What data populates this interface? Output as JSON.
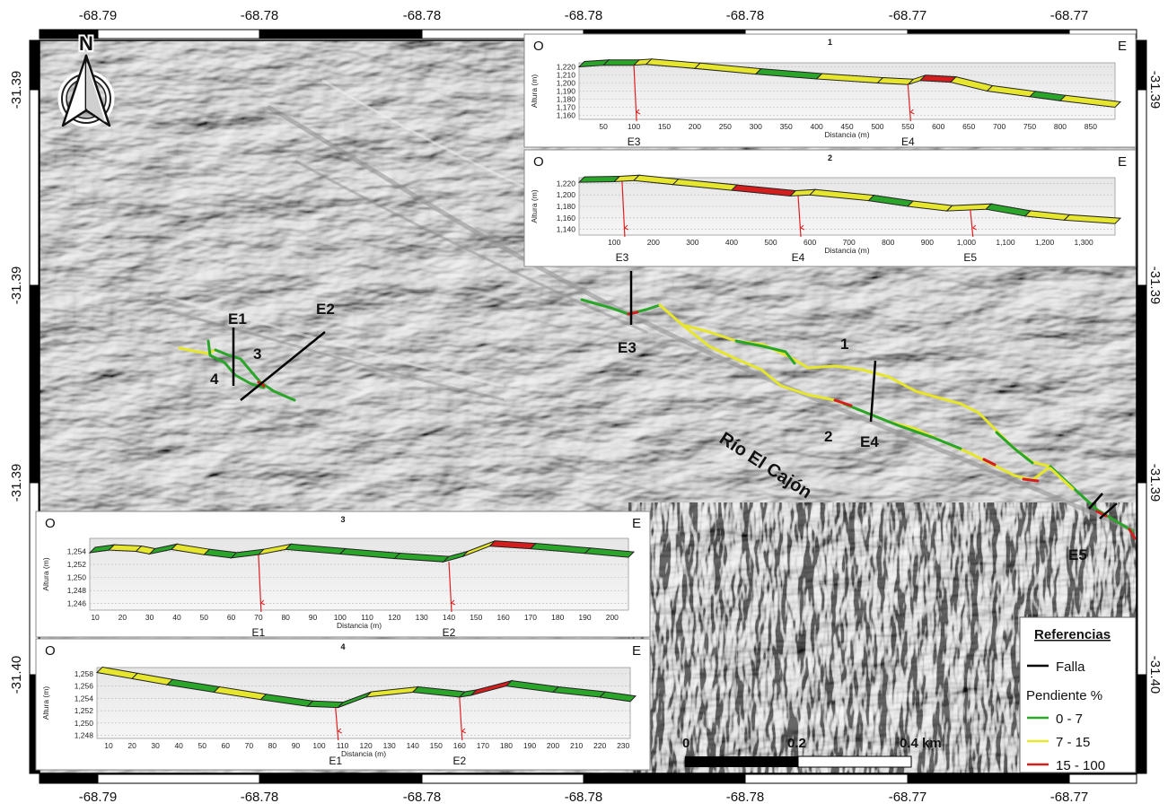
{
  "map": {
    "top_lon_labels": [
      "-68.79",
      "-68.78",
      "-68.78",
      "-68.78",
      "-68.78",
      "-68.77",
      "-68.77"
    ],
    "bottom_lon_labels": [
      "-68.79",
      "-68.78",
      "-68.78",
      "-68.78",
      "-68.78",
      "-68.77",
      "-68.77"
    ],
    "left_lat_labels": [
      "-31.39",
      "-31.39",
      "-31.39",
      "-31.40"
    ],
    "right_lat_labels": [
      "-31.39",
      "-31.39",
      "-31.39",
      "-31.40"
    ],
    "north_label": "N",
    "river_label": "Río El Cajón",
    "fault_labels": [
      "E1",
      "E2",
      "E3",
      "E4",
      "E5"
    ],
    "profile_labels": [
      "1",
      "2",
      "3",
      "4"
    ],
    "scale_labels": [
      "0",
      "0.2",
      "0.4 km"
    ],
    "colors": {
      "low": "#2aa52a",
      "mid": "#e6e62e",
      "high": "#d41e1e",
      "fault": "#000000",
      "marker": "#e02020"
    }
  },
  "legend": {
    "title": "Referencias",
    "fault_label": "Falla",
    "slope_title": "Pendiente %",
    "classes": [
      {
        "label": "0 - 7",
        "color": "#2aa52a"
      },
      {
        "label": "7 - 15",
        "color": "#e6e62e"
      },
      {
        "label": "15 - 100",
        "color": "#d41e1e"
      }
    ]
  },
  "profiles": [
    {
      "id": "p1",
      "title": "1",
      "west": "O",
      "east": "E",
      "xlabel": "Distancia (m)",
      "ylabel": "Altura (m)",
      "xmin": 10,
      "xmax": 890,
      "x_ticks": [
        50,
        100,
        150,
        200,
        250,
        300,
        350,
        400,
        450,
        500,
        550,
        600,
        650,
        700,
        750,
        800,
        850
      ],
      "ymin": 1155,
      "ymax": 1225,
      "y_ticks": [
        1160,
        1170,
        1180,
        1190,
        1200,
        1210,
        1220
      ],
      "y_tick_labels": [
        "1,160",
        "1,170",
        "1,180",
        "1,190",
        "1,200",
        "1,210",
        "1,220"
      ],
      "elevation": [
        [
          10,
          1220
        ],
        [
          50,
          1222
        ],
        [
          100,
          1222
        ],
        [
          120,
          1223
        ],
        [
          200,
          1218
        ],
        [
          300,
          1211
        ],
        [
          400,
          1205
        ],
        [
          500,
          1200
        ],
        [
          550,
          1198
        ],
        [
          570,
          1203
        ],
        [
          620,
          1201
        ],
        [
          680,
          1190
        ],
        [
          750,
          1183
        ],
        [
          800,
          1178
        ],
        [
          890,
          1170
        ]
      ],
      "segment_classes": [
        "low",
        "low",
        "mid",
        "mid",
        "mid",
        "low",
        "mid",
        "mid",
        "mid",
        "high",
        "mid",
        "mid",
        "low",
        "mid"
      ],
      "faults": [
        {
          "label": "E3",
          "x": 100
        },
        {
          "label": "E4",
          "x": 550
        }
      ]
    },
    {
      "id": "p2",
      "title": "2",
      "west": "O",
      "east": "E",
      "xlabel": "Distancia (m)",
      "ylabel": "Altura (m)",
      "xmin": 10,
      "xmax": 1380,
      "x_ticks": [
        100,
        200,
        300,
        400,
        500,
        600,
        700,
        800,
        900,
        1000,
        1100,
        1200,
        1300
      ],
      "x_tick_labels": [
        "100",
        "200",
        "300",
        "400",
        "500",
        "600",
        "700",
        "800",
        "900",
        "1,000",
        "1,100",
        "1,200",
        "1,300"
      ],
      "ymin": 1130,
      "ymax": 1230,
      "y_ticks": [
        1140,
        1160,
        1180,
        1200,
        1220
      ],
      "y_tick_labels": [
        "1,140",
        "1,160",
        "1,180",
        "1,200",
        "1,220"
      ],
      "elevation": [
        [
          10,
          1222
        ],
        [
          100,
          1223
        ],
        [
          150,
          1225
        ],
        [
          250,
          1218
        ],
        [
          400,
          1208
        ],
        [
          550,
          1198
        ],
        [
          600,
          1200
        ],
        [
          750,
          1190
        ],
        [
          850,
          1180
        ],
        [
          950,
          1172
        ],
        [
          1050,
          1175
        ],
        [
          1150,
          1163
        ],
        [
          1250,
          1156
        ],
        [
          1380,
          1150
        ]
      ],
      "segment_classes": [
        "low",
        "mid",
        "mid",
        "mid",
        "high",
        "mid",
        "mid",
        "low",
        "mid",
        "mid",
        "low",
        "mid",
        "mid"
      ],
      "faults": [
        {
          "label": "E3",
          "x": 120
        },
        {
          "label": "E4",
          "x": 570
        },
        {
          "label": "E5",
          "x": 1010
        }
      ]
    },
    {
      "id": "p3",
      "title": "3",
      "west": "O",
      "east": "E",
      "xlabel": "Distancia (m)",
      "ylabel": "Altura (m)",
      "xmin": 8,
      "xmax": 206,
      "x_ticks": [
        10,
        20,
        30,
        40,
        50,
        60,
        70,
        80,
        90,
        100,
        110,
        120,
        130,
        140,
        150,
        160,
        170,
        180,
        190,
        200
      ],
      "ymin": 1245,
      "ymax": 1256,
      "y_ticks": [
        1246,
        1248,
        1250,
        1252,
        1254
      ],
      "y_tick_labels": [
        "1,246",
        "1,248",
        "1,250",
        "1,252",
        "1,254"
      ],
      "elevation": [
        [
          8,
          1253.8
        ],
        [
          15,
          1254.2
        ],
        [
          25,
          1254.0
        ],
        [
          30,
          1253.6
        ],
        [
          38,
          1254.3
        ],
        [
          50,
          1253.5
        ],
        [
          60,
          1253.0
        ],
        [
          70,
          1253.5
        ],
        [
          80,
          1254.3
        ],
        [
          100,
          1253.6
        ],
        [
          120,
          1252.9
        ],
        [
          138,
          1252.4
        ],
        [
          145,
          1253.2
        ],
        [
          155,
          1254.8
        ],
        [
          170,
          1254.4
        ],
        [
          190,
          1253.7
        ],
        [
          206,
          1253.1
        ]
      ],
      "segment_classes": [
        "low",
        "mid",
        "mid",
        "low",
        "mid",
        "low",
        "low",
        "mid",
        "low",
        "low",
        "low",
        "low",
        "mid",
        "high",
        "low",
        "low"
      ],
      "faults": [
        {
          "label": "E1",
          "x": 70
        },
        {
          "label": "E2",
          "x": 140
        }
      ]
    },
    {
      "id": "p4",
      "title": "4",
      "west": "O",
      "east": "E",
      "xlabel": "Distancia (m)",
      "ylabel": "Altura (m)",
      "xmin": 5,
      "xmax": 233,
      "x_ticks": [
        10,
        20,
        30,
        40,
        50,
        60,
        70,
        80,
        90,
        100,
        110,
        120,
        130,
        140,
        150,
        160,
        170,
        180,
        190,
        200,
        210,
        220,
        230
      ],
      "ymin": 1247.5,
      "ymax": 1259,
      "y_ticks": [
        1248,
        1250,
        1252,
        1254,
        1256,
        1258
      ],
      "y_tick_labels": [
        "1,248",
        "1,250",
        "1,252",
        "1,254",
        "1,256",
        "1,258"
      ],
      "elevation": [
        [
          5,
          1258.2
        ],
        [
          20,
          1257.2
        ],
        [
          35,
          1256.2
        ],
        [
          55,
          1255.0
        ],
        [
          75,
          1253.8
        ],
        [
          95,
          1252.7
        ],
        [
          108,
          1252.5
        ],
        [
          120,
          1254.2
        ],
        [
          140,
          1255.0
        ],
        [
          160,
          1254.2
        ],
        [
          165,
          1254.5
        ],
        [
          180,
          1256.0
        ],
        [
          200,
          1255.0
        ],
        [
          220,
          1254.2
        ],
        [
          233,
          1253.5
        ]
      ],
      "segment_classes": [
        "mid",
        "mid",
        "low",
        "mid",
        "low",
        "low",
        "low",
        "mid",
        "low",
        "low",
        "high",
        "low",
        "low",
        "low"
      ],
      "faults": [
        {
          "label": "E1",
          "x": 107
        },
        {
          "label": "E2",
          "x": 160
        }
      ]
    }
  ]
}
